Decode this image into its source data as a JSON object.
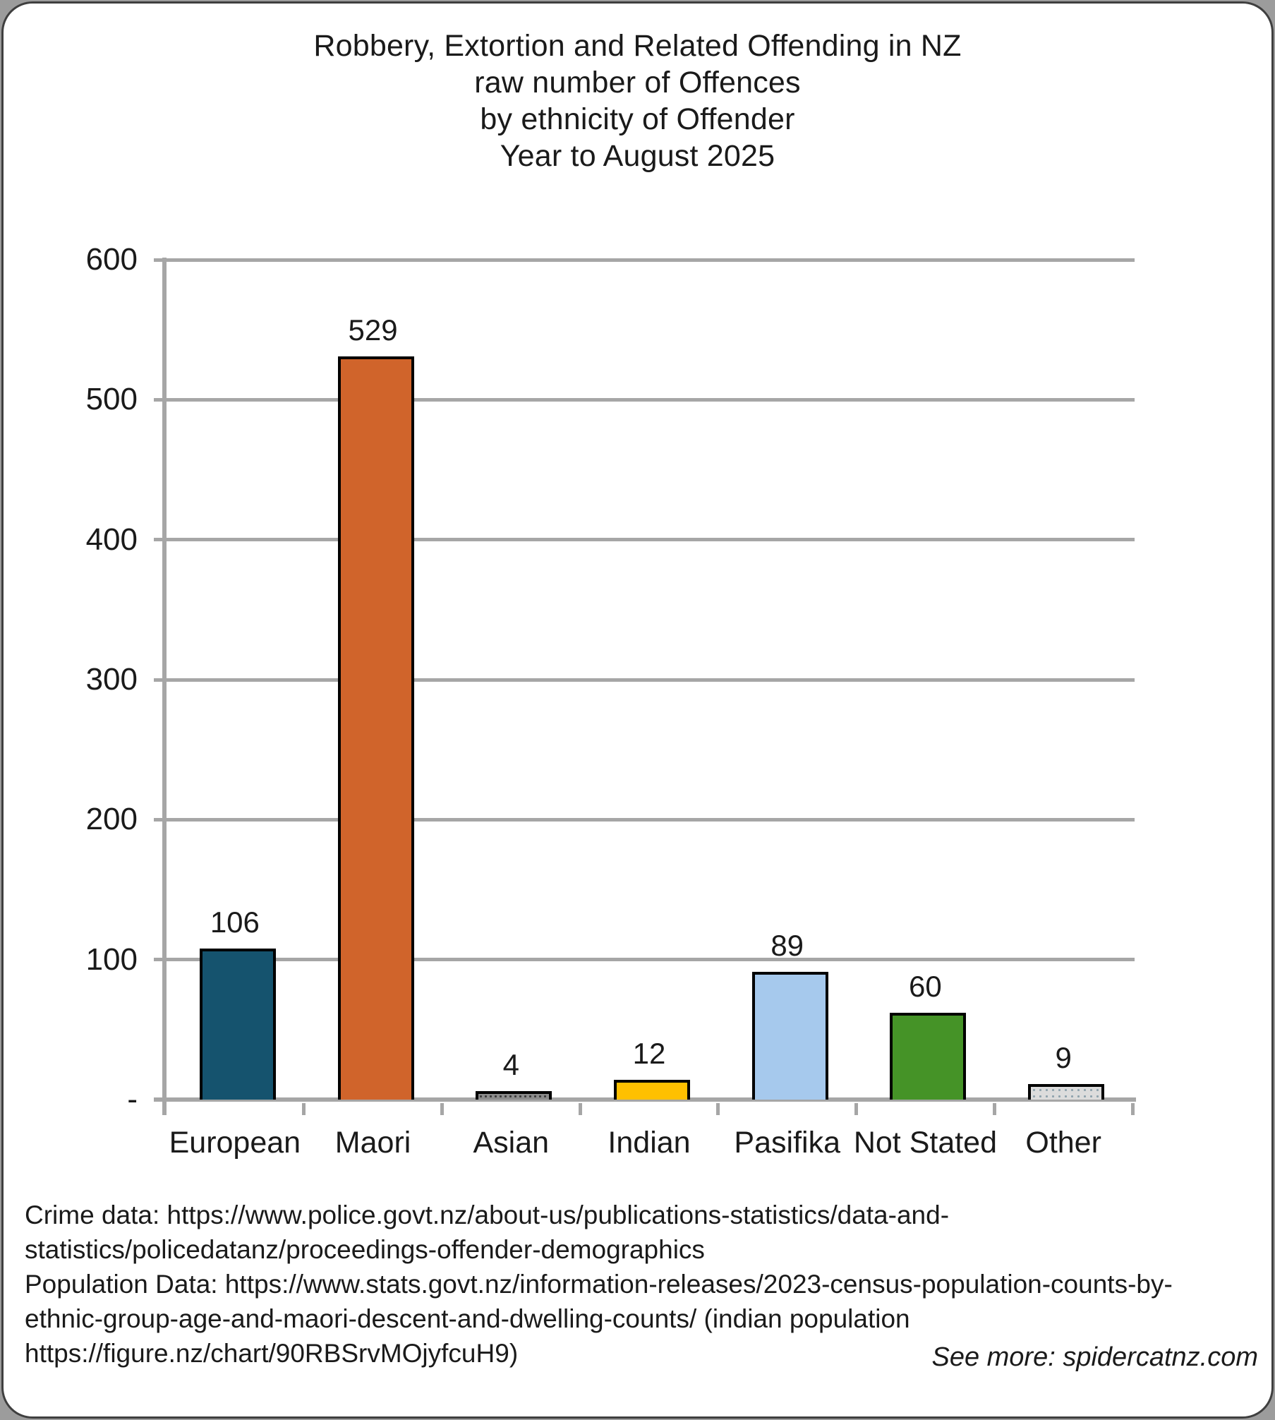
{
  "title": {
    "lines": [
      "Robbery, Extortion and Related Offending in NZ",
      "raw number of Offences",
      "by ethnicity of Offender",
      "Year to August 2025"
    ]
  },
  "chart_data": {
    "type": "bar",
    "title": "Robbery, Extortion and Related Offending in NZ raw number of Offences by ethnicity of Offender Year to August 2025",
    "categories": [
      "European",
      "Maori",
      "Asian",
      "Indian",
      "Pasifika",
      "Not Stated",
      "Other"
    ],
    "values": [
      106,
      529,
      4,
      12,
      89,
      60,
      9
    ],
    "bar_colors": [
      "#15536E",
      "#D0642B",
      "#8C8C8C",
      "#FFC000",
      "#A6C9ED",
      "#459327",
      "#DCDCDC"
    ],
    "bar_patterns": [
      "none",
      "none",
      "dots-dark",
      "none",
      "none",
      "none",
      "dots-light"
    ],
    "xlabel": "",
    "ylabel": "",
    "ylim": [
      0,
      600
    ],
    "yticks": [
      {
        "value": 0,
        "label": "-"
      },
      {
        "value": 100,
        "label": "100"
      },
      {
        "value": 200,
        "label": "200"
      },
      {
        "value": 300,
        "label": "300"
      },
      {
        "value": 400,
        "label": "400"
      },
      {
        "value": 500,
        "label": "500"
      },
      {
        "value": 600,
        "label": "600"
      }
    ],
    "grid": true,
    "legend_position": "none",
    "bar_border_color": "#000000",
    "axis_color": "#A6A6A6"
  },
  "footer": {
    "lines": [
      "Crime data: https://www.police.govt.nz/about-us/publications-statistics/data-and-",
      "statistics/policedatanz/proceedings-offender-demographics",
      "Population Data: https://www.stats.govt.nz/information-releases/2023-census-population-counts-by-",
      "ethnic-group-age-and-maori-descent-and-dwelling-counts/ (indian population",
      "https://figure.nz/chart/90RBSrvMOjyfcuH9)"
    ],
    "see_more": "See more: spidercatnz.com"
  },
  "colors": {
    "frame_background": "#FFFFFF",
    "outside_background": "#9C9C9C",
    "frame_border": "#3F3F3F",
    "text": "#1A1A1A"
  }
}
